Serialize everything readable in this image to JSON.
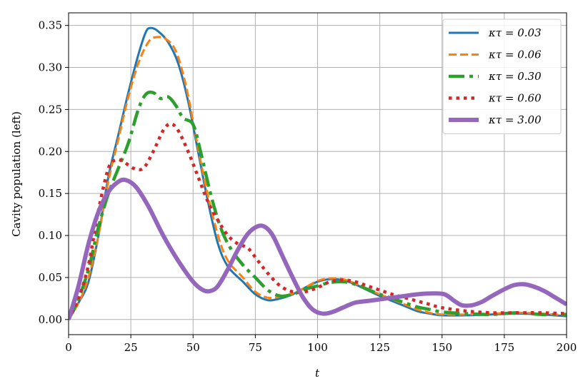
{
  "chart_data": {
    "type": "line",
    "title": "",
    "xlabel": "t",
    "ylabel": "Cavity population (left)",
    "xlim": [
      0,
      200
    ],
    "ylim": [
      -0.018,
      0.365
    ],
    "xticks": [
      0,
      25,
      50,
      75,
      100,
      125,
      150,
      175,
      200
    ],
    "yticks": [
      0.0,
      0.05,
      0.1,
      0.15,
      0.2,
      0.25,
      0.3,
      0.35
    ],
    "xtick_labels": [
      "0",
      "25",
      "50",
      "75",
      "100",
      "125",
      "150",
      "175",
      "200"
    ],
    "ytick_labels": [
      "0.00",
      "0.05",
      "0.10",
      "0.15",
      "0.20",
      "0.25",
      "0.30",
      "0.35"
    ],
    "grid": true,
    "legend_position": "top-right",
    "series": [
      {
        "name": "κτ = 0.03",
        "color": "#1f77b4",
        "style": "solid",
        "points": [
          [
            0,
            0
          ],
          [
            4,
            0.02
          ],
          [
            8,
            0.045
          ],
          [
            12,
            0.1
          ],
          [
            16,
            0.17
          ],
          [
            20,
            0.22
          ],
          [
            24,
            0.27
          ],
          [
            28,
            0.315
          ],
          [
            31,
            0.342
          ],
          [
            33,
            0.347
          ],
          [
            36,
            0.343
          ],
          [
            40,
            0.33
          ],
          [
            44,
            0.305
          ],
          [
            48,
            0.26
          ],
          [
            52,
            0.2
          ],
          [
            56,
            0.14
          ],
          [
            60,
            0.09
          ],
          [
            64,
            0.063
          ],
          [
            70,
            0.045
          ],
          [
            75,
            0.03
          ],
          [
            80,
            0.023
          ],
          [
            85,
            0.025
          ],
          [
            90,
            0.03
          ],
          [
            95,
            0.038
          ],
          [
            100,
            0.045
          ],
          [
            105,
            0.048
          ],
          [
            110,
            0.047
          ],
          [
            115,
            0.042
          ],
          [
            120,
            0.035
          ],
          [
            125,
            0.028
          ],
          [
            130,
            0.022
          ],
          [
            135,
            0.016
          ],
          [
            140,
            0.01
          ],
          [
            145,
            0.007
          ],
          [
            150,
            0.005
          ],
          [
            160,
            0.005
          ],
          [
            170,
            0.006
          ],
          [
            180,
            0.007
          ],
          [
            190,
            0.006
          ],
          [
            200,
            0.004
          ]
        ]
      },
      {
        "name": "κτ = 0.06",
        "color": "#ff7f0e",
        "style": "dashed",
        "points": [
          [
            0,
            0
          ],
          [
            4,
            0.02
          ],
          [
            8,
            0.05
          ],
          [
            12,
            0.1
          ],
          [
            16,
            0.165
          ],
          [
            20,
            0.215
          ],
          [
            24,
            0.265
          ],
          [
            28,
            0.305
          ],
          [
            32,
            0.33
          ],
          [
            35,
            0.336
          ],
          [
            39,
            0.334
          ],
          [
            43,
            0.32
          ],
          [
            47,
            0.28
          ],
          [
            51,
            0.22
          ],
          [
            55,
            0.16
          ],
          [
            60,
            0.1
          ],
          [
            64,
            0.07
          ],
          [
            70,
            0.05
          ],
          [
            75,
            0.033
          ],
          [
            80,
            0.026
          ],
          [
            85,
            0.027
          ],
          [
            90,
            0.031
          ],
          [
            95,
            0.038
          ],
          [
            100,
            0.046
          ],
          [
            105,
            0.049
          ],
          [
            110,
            0.048
          ],
          [
            115,
            0.043
          ],
          [
            120,
            0.036
          ],
          [
            125,
            0.03
          ],
          [
            130,
            0.024
          ],
          [
            135,
            0.018
          ],
          [
            140,
            0.012
          ],
          [
            145,
            0.008
          ],
          [
            150,
            0.006
          ],
          [
            160,
            0.006
          ],
          [
            170,
            0.007
          ],
          [
            180,
            0.008
          ],
          [
            190,
            0.007
          ],
          [
            200,
            0.005
          ]
        ]
      },
      {
        "name": "κτ = 0.30",
        "color": "#2ca02c",
        "style": "dashdot",
        "points": [
          [
            0,
            0
          ],
          [
            4,
            0.025
          ],
          [
            8,
            0.06
          ],
          [
            12,
            0.11
          ],
          [
            16,
            0.15
          ],
          [
            20,
            0.18
          ],
          [
            24,
            0.21
          ],
          [
            28,
            0.25
          ],
          [
            31,
            0.268
          ],
          [
            34,
            0.27
          ],
          [
            37,
            0.263
          ],
          [
            40,
            0.265
          ],
          [
            43,
            0.255
          ],
          [
            46,
            0.24
          ],
          [
            50,
            0.232
          ],
          [
            53,
            0.2
          ],
          [
            57,
            0.15
          ],
          [
            61,
            0.11
          ],
          [
            65,
            0.085
          ],
          [
            70,
            0.065
          ],
          [
            75,
            0.05
          ],
          [
            80,
            0.035
          ],
          [
            85,
            0.028
          ],
          [
            90,
            0.03
          ],
          [
            95,
            0.036
          ],
          [
            100,
            0.04
          ],
          [
            105,
            0.044
          ],
          [
            110,
            0.045
          ],
          [
            115,
            0.042
          ],
          [
            120,
            0.036
          ],
          [
            125,
            0.03
          ],
          [
            130,
            0.025
          ],
          [
            135,
            0.02
          ],
          [
            140,
            0.015
          ],
          [
            145,
            0.012
          ],
          [
            150,
            0.009
          ],
          [
            160,
            0.007
          ],
          [
            170,
            0.006
          ],
          [
            180,
            0.008
          ],
          [
            190,
            0.006
          ],
          [
            200,
            0.006
          ]
        ]
      },
      {
        "name": "κτ = 0.60",
        "color": "#d62728",
        "style": "dotted",
        "points": [
          [
            0,
            0
          ],
          [
            4,
            0.025
          ],
          [
            8,
            0.065
          ],
          [
            12,
            0.13
          ],
          [
            16,
            0.18
          ],
          [
            19,
            0.19
          ],
          [
            22,
            0.188
          ],
          [
            26,
            0.18
          ],
          [
            30,
            0.18
          ],
          [
            34,
            0.2
          ],
          [
            38,
            0.225
          ],
          [
            41,
            0.233
          ],
          [
            44,
            0.225
          ],
          [
            48,
            0.2
          ],
          [
            52,
            0.17
          ],
          [
            56,
            0.14
          ],
          [
            60,
            0.118
          ],
          [
            64,
            0.1
          ],
          [
            68,
            0.09
          ],
          [
            72,
            0.085
          ],
          [
            76,
            0.07
          ],
          [
            80,
            0.055
          ],
          [
            85,
            0.04
          ],
          [
            90,
            0.033
          ],
          [
            95,
            0.033
          ],
          [
            100,
            0.038
          ],
          [
            105,
            0.045
          ],
          [
            110,
            0.047
          ],
          [
            115,
            0.045
          ],
          [
            120,
            0.04
          ],
          [
            125,
            0.035
          ],
          [
            130,
            0.03
          ],
          [
            135,
            0.026
          ],
          [
            140,
            0.022
          ],
          [
            145,
            0.018
          ],
          [
            150,
            0.014
          ],
          [
            160,
            0.01
          ],
          [
            170,
            0.008
          ],
          [
            180,
            0.008
          ],
          [
            190,
            0.008
          ],
          [
            200,
            0.007
          ]
        ]
      },
      {
        "name": "κτ = 3.00",
        "color": "#9467bd",
        "style": "solid-thick",
        "points": [
          [
            0,
            0
          ],
          [
            4,
            0.04
          ],
          [
            8,
            0.09
          ],
          [
            12,
            0.128
          ],
          [
            16,
            0.152
          ],
          [
            20,
            0.164
          ],
          [
            23,
            0.166
          ],
          [
            27,
            0.158
          ],
          [
            32,
            0.135
          ],
          [
            38,
            0.1
          ],
          [
            44,
            0.07
          ],
          [
            50,
            0.045
          ],
          [
            54,
            0.035
          ],
          [
            57,
            0.034
          ],
          [
            60,
            0.04
          ],
          [
            64,
            0.06
          ],
          [
            68,
            0.083
          ],
          [
            72,
            0.102
          ],
          [
            76,
            0.111
          ],
          [
            79,
            0.11
          ],
          [
            82,
            0.1
          ],
          [
            86,
            0.075
          ],
          [
            90,
            0.05
          ],
          [
            94,
            0.027
          ],
          [
            98,
            0.012
          ],
          [
            102,
            0.007
          ],
          [
            106,
            0.009
          ],
          [
            110,
            0.014
          ],
          [
            115,
            0.02
          ],
          [
            120,
            0.022
          ],
          [
            125,
            0.024
          ],
          [
            130,
            0.026
          ],
          [
            135,
            0.028
          ],
          [
            140,
            0.03
          ],
          [
            146,
            0.031
          ],
          [
            151,
            0.03
          ],
          [
            155,
            0.022
          ],
          [
            158,
            0.017
          ],
          [
            162,
            0.017
          ],
          [
            166,
            0.021
          ],
          [
            170,
            0.028
          ],
          [
            175,
            0.036
          ],
          [
            179,
            0.041
          ],
          [
            183,
            0.042
          ],
          [
            187,
            0.039
          ],
          [
            191,
            0.034
          ],
          [
            195,
            0.027
          ],
          [
            200,
            0.018
          ]
        ]
      }
    ]
  }
}
